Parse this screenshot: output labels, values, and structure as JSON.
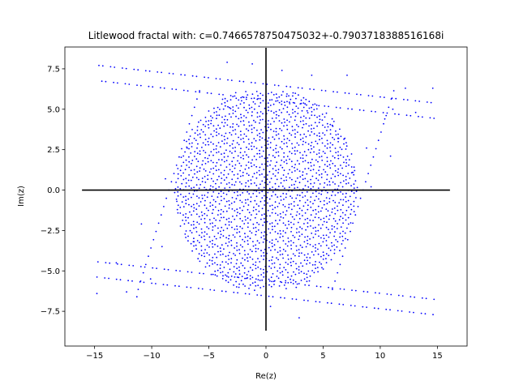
{
  "chart_data": {
    "type": "scatter",
    "title": "Litlewood fractal with: c=0.7466578750475032+-0.7903718388516168i",
    "xlabel": "Re(z)",
    "ylabel": "Im(z)",
    "xlim": [
      -17.6,
      17.6
    ],
    "ylim": [
      -9.65,
      8.85
    ],
    "x_ticks": [
      -15,
      -10,
      -5,
      0,
      5,
      10,
      15
    ],
    "x_tick_labels": [
      "−15",
      "−10",
      "−5",
      "0",
      "5",
      "10",
      "15"
    ],
    "y_ticks": [
      -7.5,
      -5.0,
      -2.5,
      0.0,
      2.5,
      5.0,
      7.5
    ],
    "y_tick_labels": [
      "−7.5",
      "−5.0",
      "−2.5",
      "0.0",
      "2.5",
      "5.0",
      "7.5"
    ],
    "grid": false,
    "point_color": "#0000ff",
    "axes_line_color": "#000000",
    "reference_lines": {
      "horizontal": {
        "y": 0,
        "x_range": [
          -16.1,
          16.1
        ]
      },
      "vertical": {
        "x": 0,
        "y_range": [
          -8.7,
          8.8
        ]
      }
    },
    "sample_points": [
      [
        -14.8,
        -6.4
      ],
      [
        -13.1,
        -4.5
      ],
      [
        -12.2,
        -6.3
      ],
      [
        -11.3,
        -6.6
      ],
      [
        -10.1,
        -5.5
      ],
      [
        -9.1,
        -3.5
      ],
      [
        -8.8,
        0.7
      ],
      [
        -7.8,
        -0.7
      ],
      [
        -6.9,
        2.6
      ],
      [
        -5.9,
        4.2
      ],
      [
        -4.8,
        4.3
      ],
      [
        -3.2,
        5.1
      ],
      [
        -2.3,
        -5.2
      ],
      [
        -1.0,
        -6.2
      ],
      [
        -0.8,
        6.1
      ],
      [
        0.4,
        -7.2
      ],
      [
        1.8,
        5.8
      ],
      [
        2.9,
        -7.9
      ],
      [
        3.6,
        4.9
      ],
      [
        4.9,
        -4.8
      ],
      [
        5.8,
        4.0
      ],
      [
        6.9,
        3.2
      ],
      [
        7.6,
        1.1
      ],
      [
        8.8,
        2.6
      ],
      [
        9.2,
        0.2
      ],
      [
        10.4,
        4.4
      ],
      [
        11.1,
        5.0
      ],
      [
        12.2,
        6.3
      ],
      [
        13.1,
        4.8
      ],
      [
        14.6,
        6.3
      ],
      [
        -3.4,
        7.9
      ],
      [
        -1.2,
        7.8
      ],
      [
        1.4,
        7.4
      ],
      [
        4.0,
        7.1
      ],
      [
        7.1,
        7.1
      ],
      [
        -10.9,
        -2.1
      ],
      [
        10.9,
        2.1
      ],
      [
        -6.3,
        -3.2
      ],
      [
        6.3,
        3.2
      ],
      [
        0.0,
        0.0
      ]
    ]
  }
}
